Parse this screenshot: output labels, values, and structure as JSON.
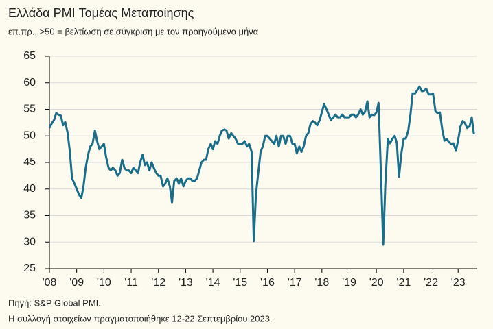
{
  "chart_data": {
    "type": "line",
    "title": "Ελλάδα PMI Τομέας Μεταποίησης",
    "subtitle": "επ.πρ., >50 = βελτίωση σε σύγκριση με τον προηγούμενο μήνα",
    "notes": [
      "Πηγή: S&P Global PMI.",
      "Η συλλογή στοιχείων πραγματοποιήθηκε 12-22 Σεπτεμβρίου 2023."
    ],
    "xlim": [
      2008,
      2023.7
    ],
    "xticks": [
      {
        "value": 2008,
        "label": "'08"
      },
      {
        "value": 2009,
        "label": "'09"
      },
      {
        "value": 2010,
        "label": "'10"
      },
      {
        "value": 2011,
        "label": "'11"
      },
      {
        "value": 2012,
        "label": "'12"
      },
      {
        "value": 2013,
        "label": "'13"
      },
      {
        "value": 2014,
        "label": "'14"
      },
      {
        "value": 2015,
        "label": "'15"
      },
      {
        "value": 2016,
        "label": "'16"
      },
      {
        "value": 2017,
        "label": "'17"
      },
      {
        "value": 2018,
        "label": "'18"
      },
      {
        "value": 2019,
        "label": "'19"
      },
      {
        "value": 2020,
        "label": "'20"
      },
      {
        "value": 2021,
        "label": "'21"
      },
      {
        "value": 2022,
        "label": "'22"
      },
      {
        "value": 2023,
        "label": "'23"
      }
    ],
    "ylim": [
      25,
      65
    ],
    "yticks": [
      25,
      30,
      35,
      40,
      45,
      50,
      55,
      60,
      65
    ],
    "grid": true,
    "x": [
      2008,
      2008.08,
      2008.17,
      2008.25,
      2008.33,
      2008.42,
      2008.5,
      2008.58,
      2008.67,
      2008.75,
      2008.83,
      2008.92,
      2009,
      2009.08,
      2009.17,
      2009.25,
      2009.33,
      2009.42,
      2009.5,
      2009.58,
      2009.67,
      2009.75,
      2009.83,
      2009.92,
      2010,
      2010.08,
      2010.17,
      2010.25,
      2010.33,
      2010.42,
      2010.5,
      2010.58,
      2010.67,
      2010.75,
      2010.83,
      2010.92,
      2011,
      2011.08,
      2011.17,
      2011.25,
      2011.33,
      2011.42,
      2011.5,
      2011.58,
      2011.67,
      2011.75,
      2011.83,
      2011.92,
      2012,
      2012.08,
      2012.17,
      2012.25,
      2012.33,
      2012.42,
      2012.5,
      2012.58,
      2012.67,
      2012.75,
      2012.83,
      2012.92,
      2013,
      2013.08,
      2013.17,
      2013.25,
      2013.33,
      2013.42,
      2013.5,
      2013.58,
      2013.67,
      2013.75,
      2013.83,
      2013.92,
      2014,
      2014.08,
      2014.17,
      2014.25,
      2014.33,
      2014.42,
      2014.5,
      2014.58,
      2014.67,
      2014.75,
      2014.83,
      2014.92,
      2015,
      2015.08,
      2015.17,
      2015.25,
      2015.33,
      2015.42,
      2015.5,
      2015.58,
      2015.67,
      2015.75,
      2015.83,
      2015.92,
      2016,
      2016.08,
      2016.17,
      2016.25,
      2016.33,
      2016.42,
      2016.5,
      2016.58,
      2016.67,
      2016.75,
      2016.83,
      2016.92,
      2017,
      2017.08,
      2017.17,
      2017.25,
      2017.33,
      2017.42,
      2017.5,
      2017.58,
      2017.67,
      2017.75,
      2017.83,
      2017.92,
      2018,
      2018.08,
      2018.17,
      2018.25,
      2018.33,
      2018.42,
      2018.5,
      2018.58,
      2018.67,
      2018.75,
      2018.83,
      2018.92,
      2019,
      2019.08,
      2019.17,
      2019.25,
      2019.33,
      2019.42,
      2019.5,
      2019.58,
      2019.67,
      2019.75,
      2019.83,
      2019.92,
      2020,
      2020.08,
      2020.17,
      2020.25,
      2020.33,
      2020.42,
      2020.5,
      2020.58,
      2020.67,
      2020.75,
      2020.83,
      2020.92,
      2021,
      2021.08,
      2021.17,
      2021.25,
      2021.33,
      2021.42,
      2021.5,
      2021.58,
      2021.67,
      2021.75,
      2021.83,
      2021.92,
      2022,
      2022.08,
      2022.17,
      2022.25,
      2022.33,
      2022.42,
      2022.5,
      2022.58,
      2022.67,
      2022.75,
      2022.83,
      2022.92,
      2023,
      2023.08,
      2023.17,
      2023.25,
      2023.33,
      2023.42,
      2023.5,
      2023.58
    ],
    "series": [
      {
        "color": "#1a6e8a",
        "values": [
          51.5,
          52.3,
          53,
          54.3,
          54,
          53.8,
          52,
          52.6,
          50.5,
          47,
          42,
          41,
          40,
          39,
          38.3,
          40.5,
          44,
          46.5,
          48,
          48.5,
          51,
          49,
          47.5,
          48,
          48.5,
          46,
          44,
          43.5,
          44,
          43.5,
          42.5,
          43,
          45.5,
          44,
          43.5,
          43.5,
          43,
          44,
          43.5,
          43,
          45,
          46.5,
          44.5,
          45,
          43.5,
          45,
          44,
          43,
          42.5,
          42.5,
          40.5,
          41,
          42,
          40.5,
          37.5,
          41.5,
          42,
          41,
          42,
          40.5,
          41.5,
          42,
          42,
          41.5,
          41.5,
          42,
          43.5,
          45,
          45.5,
          45.5,
          47.5,
          48.5,
          47.5,
          49,
          48.5,
          50,
          51,
          51.2,
          51,
          49.5,
          50.5,
          50,
          49.5,
          48.5,
          48.5,
          48.5,
          49,
          48,
          48.5,
          47,
          30.2,
          39,
          43.3,
          47,
          48,
          50,
          50,
          49.5,
          49,
          48.5,
          50,
          48,
          50,
          50,
          48.5,
          50,
          50,
          48.5,
          48.5,
          46.7,
          48,
          47,
          48,
          50,
          50.5,
          52.2,
          52.8,
          52.5,
          52,
          53,
          54.5,
          56,
          55,
          54,
          53,
          53.5,
          54,
          53.5,
          53.5,
          54,
          53.5,
          53.5,
          53.5,
          54,
          54,
          53.5,
          54,
          55,
          54,
          54.5,
          56.5,
          53.5,
          54,
          53.9,
          54.4,
          56.2,
          42.5,
          29.5,
          41,
          49.4,
          48.6,
          49.4,
          50,
          48.7,
          42.3,
          46.8,
          49.5,
          49.5,
          51,
          54,
          58,
          58,
          58.6,
          59.3,
          58.4,
          58.5,
          58.9,
          57.8,
          57.8,
          57.9,
          54.6,
          54.3,
          54.4,
          51.1,
          49.1,
          49.4,
          48.8,
          48.5,
          48.6,
          47.2,
          49.2,
          51.7,
          52.8,
          52.4,
          51.5,
          51.8,
          53.5,
          50.3
        ]
      }
    ]
  }
}
